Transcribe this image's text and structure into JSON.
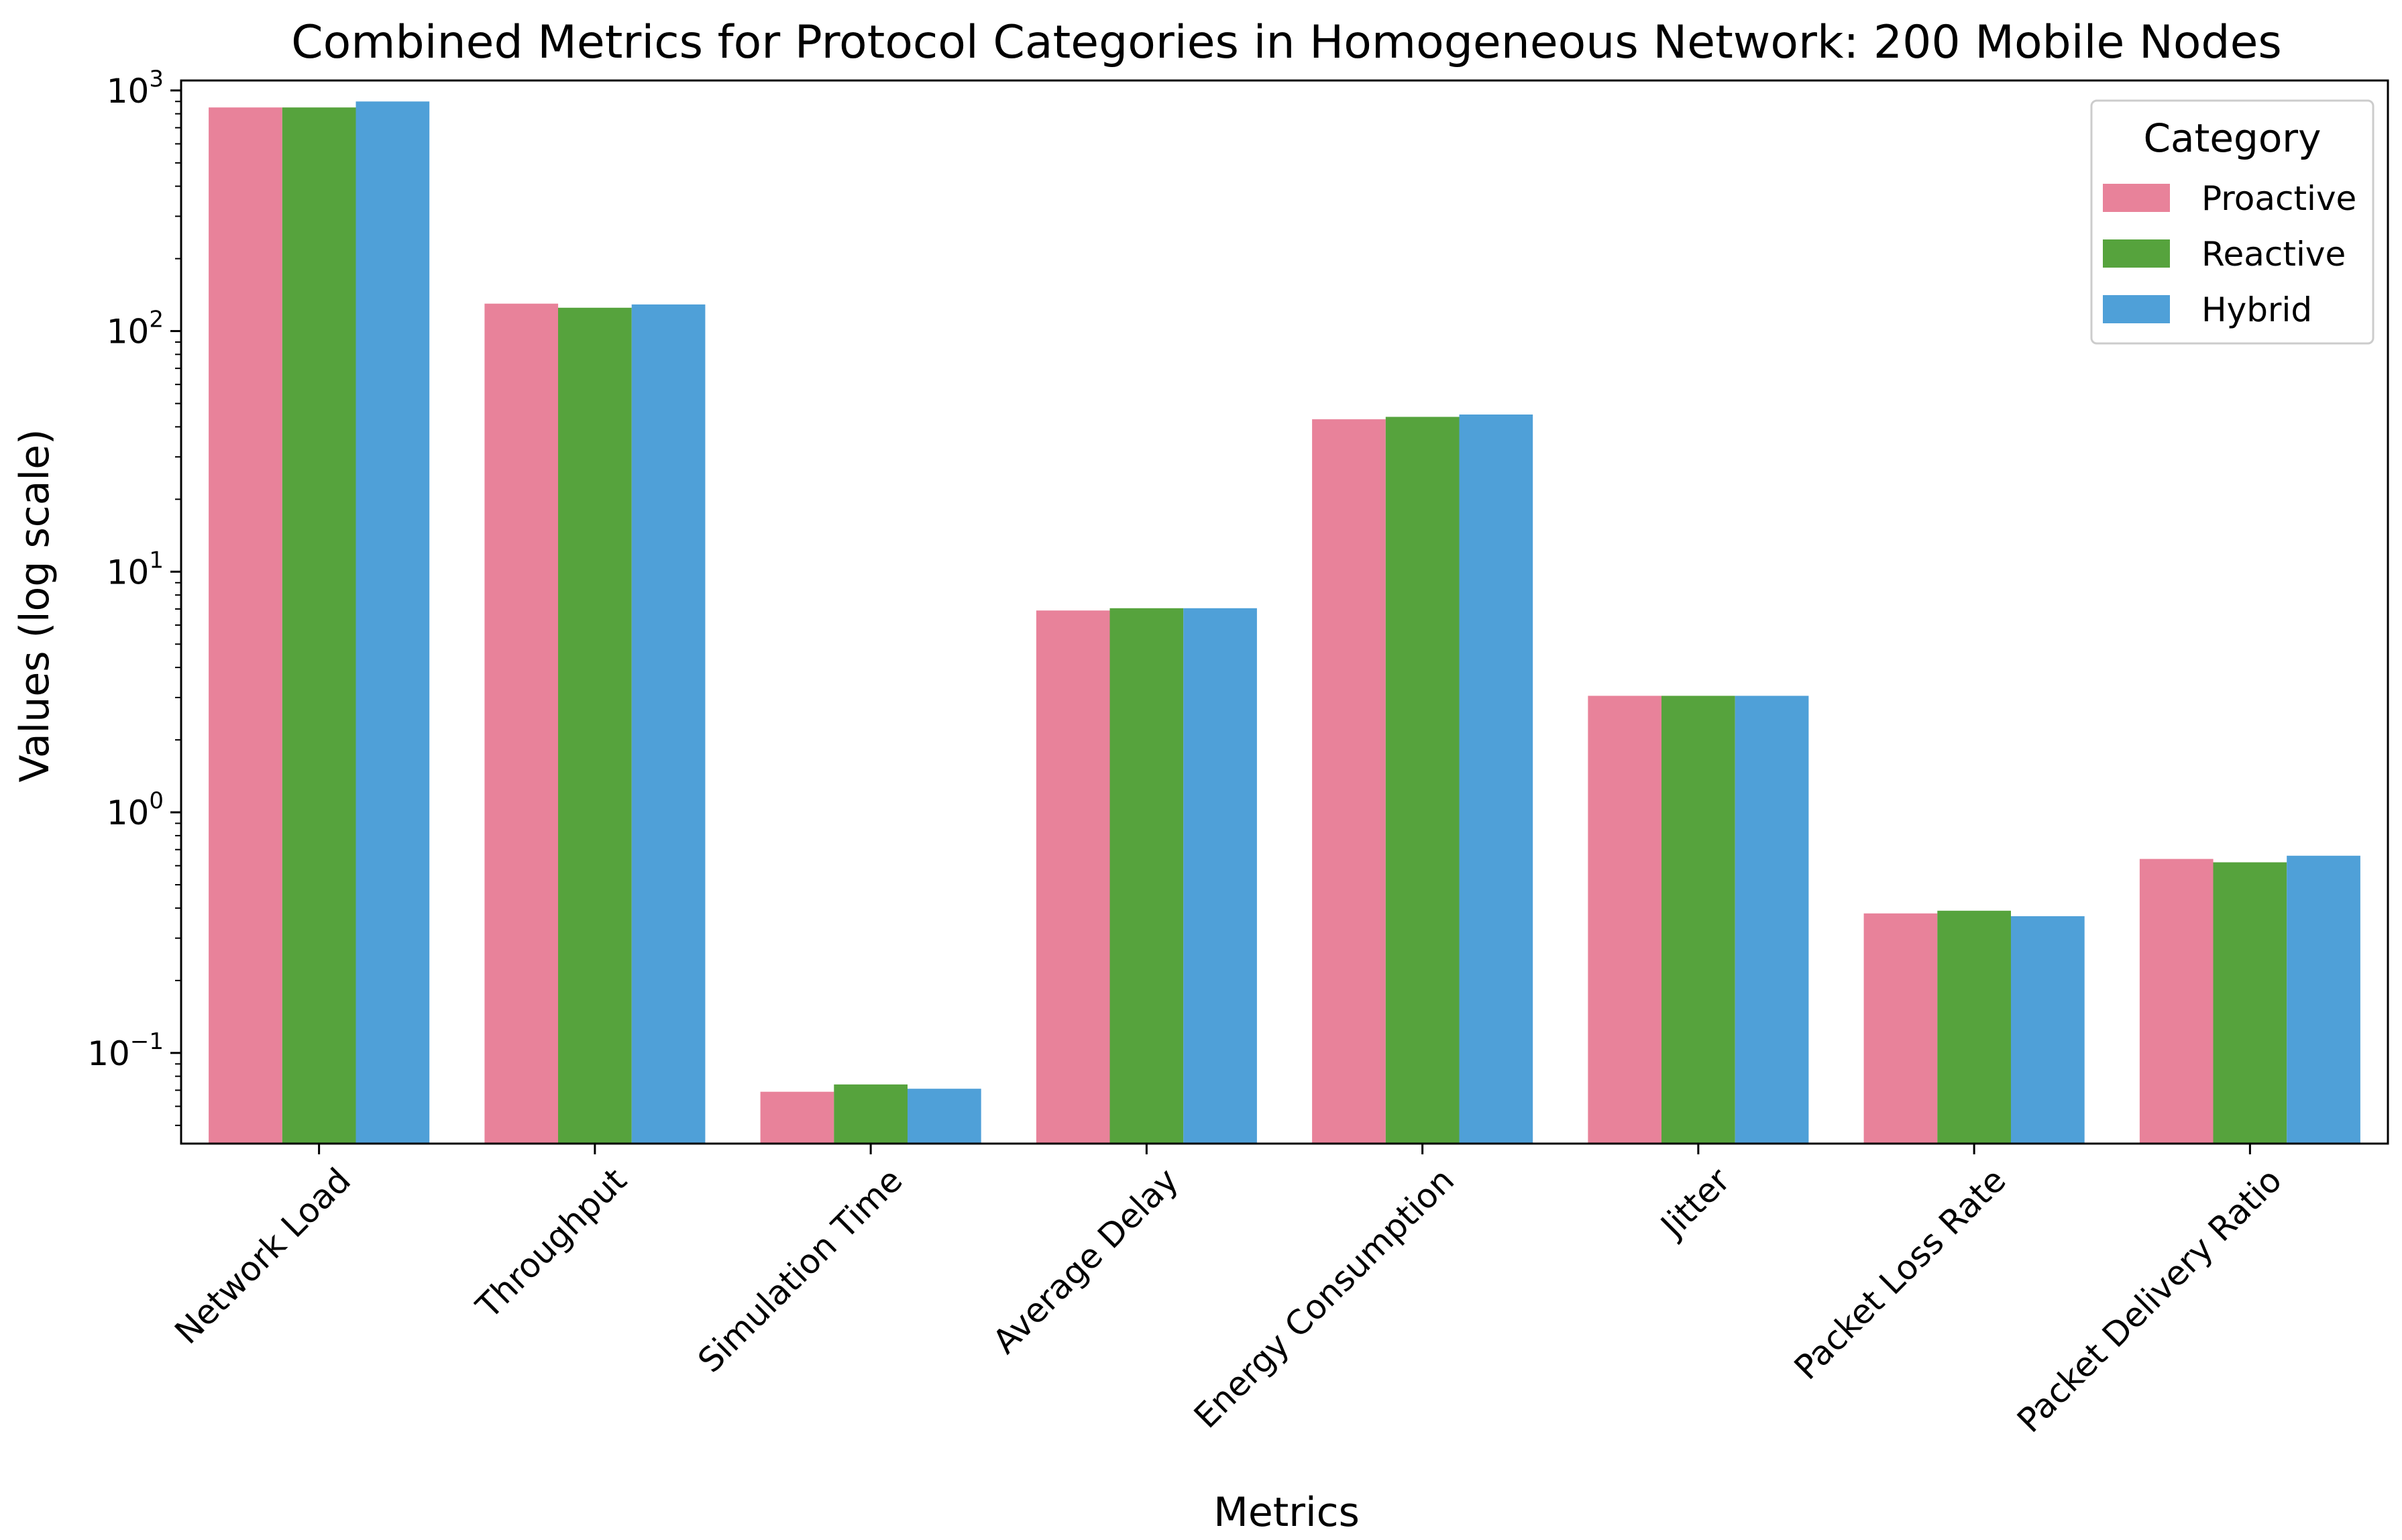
{
  "chart_data": {
    "type": "bar",
    "title": "Combined Metrics for Protocol Categories in Homogeneous Network: 200 Mobile Nodes",
    "xlabel": "Metrics",
    "ylabel": "Values (log scale)",
    "yscale": "log",
    "ylim": [
      0.042,
      1100
    ],
    "yticks": [
      {
        "value": 0.1,
        "base": "10",
        "exp": "−1"
      },
      {
        "value": 1,
        "base": "10",
        "exp": "0"
      },
      {
        "value": 10,
        "base": "10",
        "exp": "1"
      },
      {
        "value": 100,
        "base": "10",
        "exp": "2"
      },
      {
        "value": 1000,
        "base": "10",
        "exp": "3"
      }
    ],
    "categories": [
      "Network Load",
      "Throughput",
      "Simulation Time",
      "Average Delay",
      "Energy Consumption",
      "Jitter",
      "Packet Loss Rate",
      "Packet Delivery Ratio"
    ],
    "series": [
      {
        "name": "Proactive",
        "color": "#e8829a",
        "values": [
          850,
          130,
          0.069,
          6.9,
          43,
          3.05,
          0.38,
          0.64
        ]
      },
      {
        "name": "Reactive",
        "color": "#56a33d",
        "values": [
          850,
          125,
          0.074,
          7.05,
          44,
          3.05,
          0.39,
          0.62
        ]
      },
      {
        "name": "Hybrid",
        "color": "#4fa0d8",
        "values": [
          900,
          129,
          0.071,
          7.05,
          45,
          3.05,
          0.37,
          0.66
        ]
      }
    ],
    "legend": {
      "title": "Category",
      "placement": "top-right"
    },
    "grid": false
  }
}
